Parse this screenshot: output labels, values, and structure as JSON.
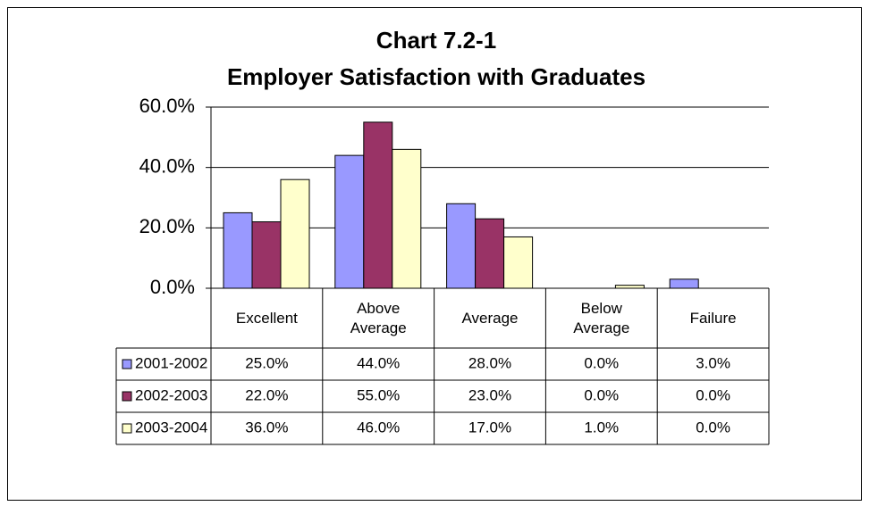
{
  "chart_data": {
    "type": "bar",
    "title": "Chart 7.2-1",
    "subtitle": "Employer Satisfaction with Graduates",
    "categories": [
      "Excellent",
      "Above Average",
      "Average",
      "Below Average",
      "Failure"
    ],
    "series": [
      {
        "name": "2001-2002",
        "color": "#9999ff",
        "values": [
          25,
          44,
          28,
          0,
          3
        ],
        "value_labels": [
          "25.0%",
          "44.0%",
          "28.0%",
          "0.0%",
          "3.0%"
        ]
      },
      {
        "name": "2002-2003",
        "color": "#993366",
        "values": [
          22,
          55,
          23,
          0,
          0
        ],
        "value_labels": [
          "22.0%",
          "55.0%",
          "23.0%",
          "0.0%",
          "0.0%"
        ]
      },
      {
        "name": "2003-2004",
        "color": "#ffffcc",
        "values": [
          36,
          46,
          17,
          1,
          0
        ],
        "value_labels": [
          "36.0%",
          "46.0%",
          "17.0%",
          "1.0%",
          "0.0%"
        ]
      }
    ],
    "ylim": [
      0,
      60
    ],
    "yticks": [
      {
        "value": 0,
        "label": "0.0%"
      },
      {
        "value": 20,
        "label": "20.0%"
      },
      {
        "value": 40,
        "label": "40.0%"
      },
      {
        "value": 60,
        "label": "60.0%"
      }
    ],
    "grid": true
  }
}
